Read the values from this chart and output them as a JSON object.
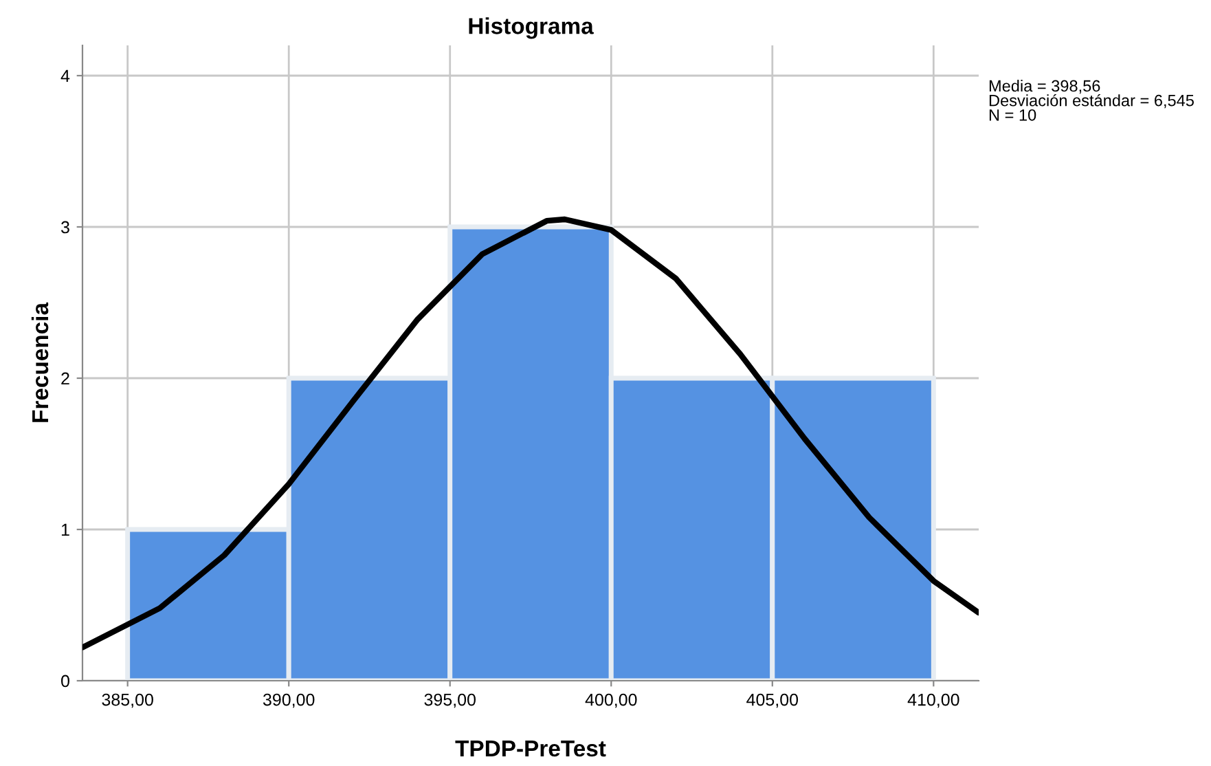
{
  "chart_data": {
    "type": "histogram",
    "title": "Histograma",
    "xlabel": "TPDP-PreTest",
    "ylabel": "Frecuencia",
    "bins": [
      385,
      390,
      395,
      400,
      405,
      410
    ],
    "values": [
      1,
      2,
      3,
      2,
      2
    ],
    "color": "#5592e2",
    "series": [
      {
        "type": "line",
        "color": "#000000",
        "x": [
          383.6,
          386,
          388,
          390,
          392,
          394,
          396,
          398,
          398.56,
          400,
          402,
          404,
          406,
          408,
          410,
          411.4
        ],
        "values": [
          0.22,
          0.48,
          0.83,
          1.3,
          1.85,
          2.39,
          2.82,
          3.04,
          3.05,
          2.98,
          2.66,
          2.16,
          1.6,
          1.08,
          0.66,
          0.45
        ]
      }
    ],
    "xlim": [
      383.6,
      411.4
    ],
    "ylim": [
      0,
      4.2
    ],
    "xticks": [
      {
        "value": 385,
        "label": "385,00"
      },
      {
        "value": 390,
        "label": "390,00"
      },
      {
        "value": 395,
        "label": "395,00"
      },
      {
        "value": 400,
        "label": "400,00"
      },
      {
        "value": 405,
        "label": "405,00"
      },
      {
        "value": 410,
        "label": "410,00"
      }
    ],
    "yticks": [
      0,
      1,
      2,
      3,
      4
    ],
    "grid": true,
    "annotations": [
      "Media = 398,56\nDesviación estándar = 6,545\nN = 10"
    ]
  }
}
